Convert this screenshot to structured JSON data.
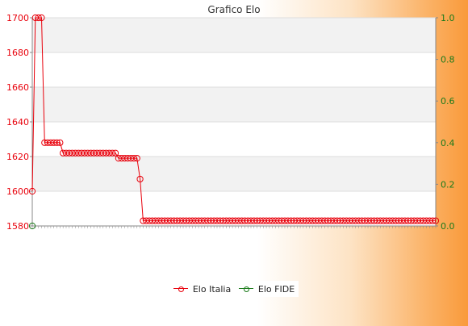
{
  "chart_data": {
    "type": "line",
    "title": "Grafico Elo",
    "xlabel": "",
    "ylabel": "",
    "ylim": [
      1580,
      1700
    ],
    "y2lim": [
      0.0,
      1.0
    ],
    "yticks": [
      "1580",
      "1600",
      "1620",
      "1640",
      "1660",
      "1680",
      "1700"
    ],
    "y2ticks": [
      "0.0",
      "0.2",
      "0.4",
      "0.6",
      "0.8",
      "1.0"
    ],
    "grid": true,
    "legend_position": "bottom",
    "series": [
      {
        "name": "Elo Italia",
        "color": "#e8000b",
        "axis": "left",
        "values": [
          1600,
          1700,
          1700,
          1700,
          1628,
          1628,
          1628,
          1628,
          1628,
          1628,
          1622,
          1622,
          1622,
          1622,
          1622,
          1622,
          1622,
          1622,
          1622,
          1622,
          1622,
          1622,
          1622,
          1622,
          1622,
          1622,
          1622,
          1622,
          1619,
          1619,
          1619,
          1619,
          1619,
          1619,
          1619,
          1607,
          1583,
          1583,
          1583,
          1583,
          1583,
          1583,
          1583,
          1583,
          1583,
          1583,
          1583,
          1583,
          1583,
          1583,
          1583,
          1583,
          1583,
          1583,
          1583,
          1583,
          1583,
          1583,
          1583,
          1583,
          1583,
          1583,
          1583,
          1583,
          1583,
          1583,
          1583,
          1583,
          1583,
          1583,
          1583,
          1583,
          1583,
          1583,
          1583,
          1583,
          1583,
          1583,
          1583,
          1583,
          1583,
          1583,
          1583,
          1583,
          1583,
          1583,
          1583,
          1583,
          1583,
          1583,
          1583,
          1583,
          1583,
          1583,
          1583,
          1583,
          1583,
          1583,
          1583,
          1583,
          1583,
          1583,
          1583,
          1583,
          1583,
          1583,
          1583,
          1583,
          1583,
          1583,
          1583,
          1583,
          1583,
          1583,
          1583,
          1583,
          1583,
          1583,
          1583,
          1583,
          1583,
          1583,
          1583,
          1583,
          1583,
          1583,
          1583,
          1583,
          1583,
          1583,
          1583,
          1583
        ]
      },
      {
        "name": "Elo FIDE",
        "color": "#1a7a1a",
        "axis": "left",
        "values": [
          1580
        ]
      }
    ],
    "x_tick_labels_note_chars": [
      "2",
      "0",
      "0",
      "4",
      "1"
    ]
  },
  "legend": {
    "italia_label": "Elo Italia",
    "fide_label": "Elo FIDE"
  }
}
